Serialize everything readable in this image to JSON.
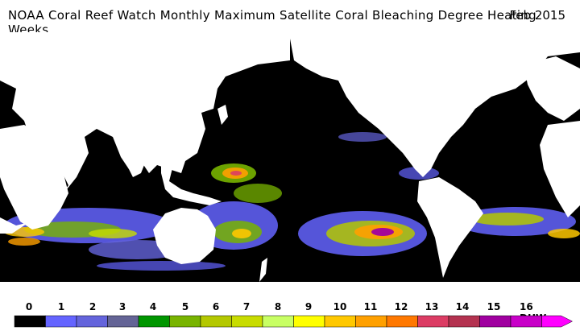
{
  "title": {
    "text": "NOAA Coral Reef Watch Monthly Maximum Satellite Coral Bleaching Degree Heating Weeks",
    "date": "Feb 2015"
  },
  "legend": {
    "labels": [
      "0",
      "1",
      "2",
      "3",
      "4",
      "5",
      "6",
      "7",
      "8",
      "9",
      "10",
      "11",
      "12",
      "13",
      "14",
      "15",
      "16 DHW"
    ],
    "colors": [
      "#000000",
      "#6464ff",
      "#6464dc",
      "#646496",
      "#009600",
      "#78b400",
      "#b4c800",
      "#c8dc00",
      "#c8ff64",
      "#ffff00",
      "#ffc800",
      "#ffa000",
      "#ff7800",
      "#dc3c64",
      "#b43250",
      "#a000a0",
      "#c800c8",
      "#ff00ff"
    ],
    "unit": "DHW"
  },
  "map": {
    "land_color": "#ffffff",
    "ocean_color": "#000000"
  }
}
